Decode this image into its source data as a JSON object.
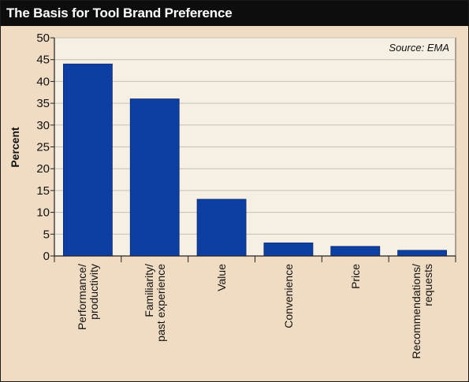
{
  "chart_data": {
    "type": "bar",
    "title": "The Basis for Tool Brand Preference",
    "ylabel": "Percent",
    "xlabel": "",
    "source": "Source: EMA",
    "ylim": [
      0,
      50
    ],
    "yticks": [
      0,
      5,
      10,
      15,
      20,
      25,
      30,
      35,
      40,
      45,
      50
    ],
    "categories": [
      [
        "Performance/",
        "productivity"
      ],
      [
        "Familiarity/",
        "past experience"
      ],
      [
        "Value"
      ],
      [
        "Convenience"
      ],
      [
        "Price"
      ],
      [
        "Recommendations/",
        "requests"
      ]
    ],
    "values": [
      44,
      36,
      13,
      3,
      2.2,
      1.3
    ],
    "grid": true,
    "colors": {
      "bar": "#0d3fa3",
      "background": "#efdcc2",
      "plot": "#f6efe3",
      "grid": "#c9bfae",
      "header": "#0d0d0d"
    }
  }
}
